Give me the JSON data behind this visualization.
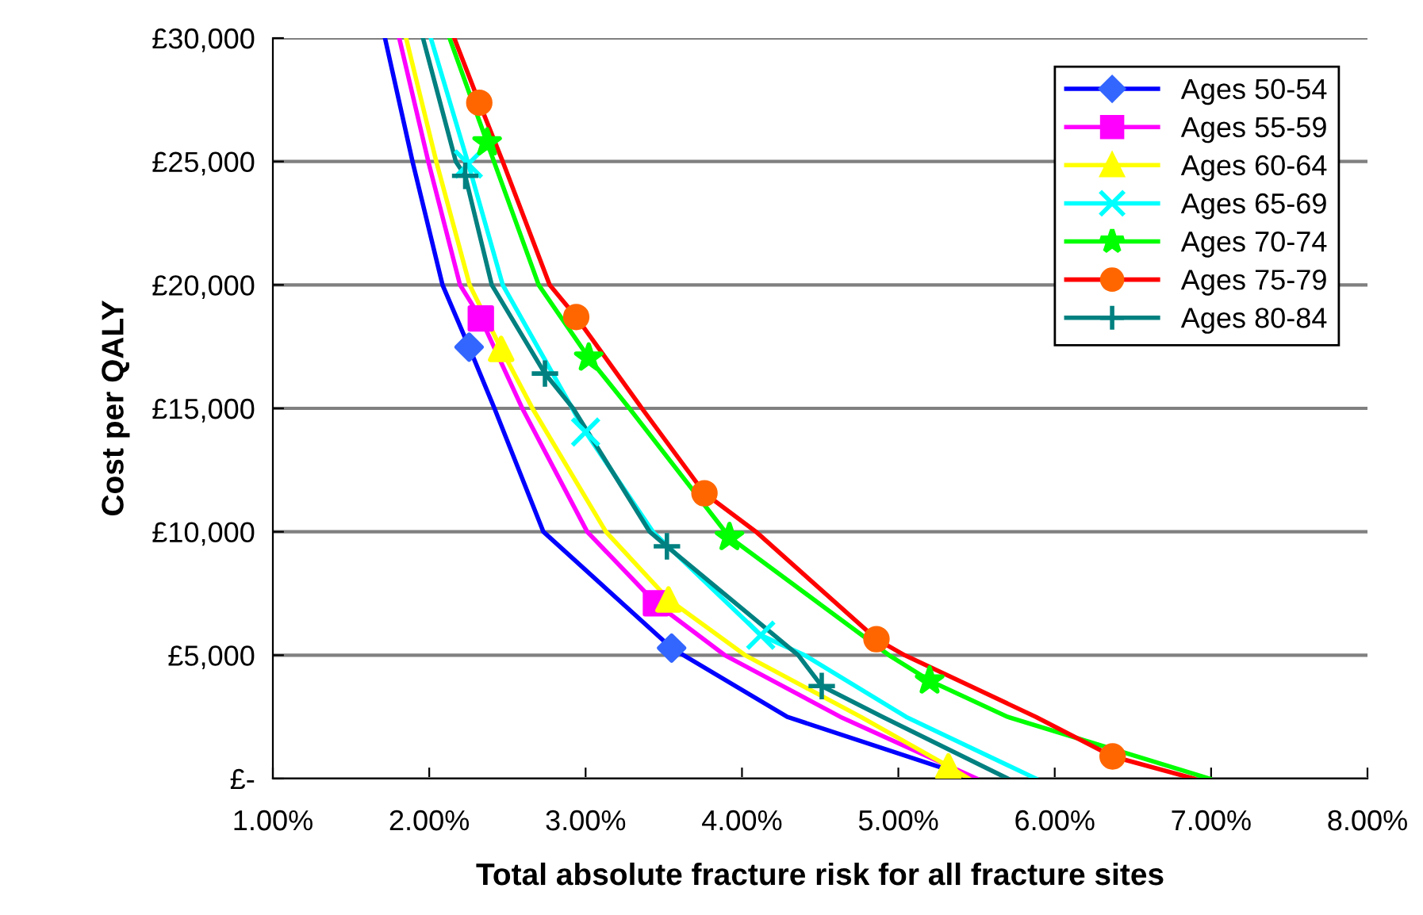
{
  "chart_data": {
    "type": "line",
    "xlabel": "Total absolute fracture risk for all fracture sites",
    "ylabel": "Cost per QALY",
    "xlim": [
      1,
      8
    ],
    "xticks": [
      {
        "value": 1,
        "label": "1.00%"
      },
      {
        "value": 2,
        "label": "2.00%"
      },
      {
        "value": 3,
        "label": "3.00%"
      },
      {
        "value": 4,
        "label": "4.00%"
      },
      {
        "value": 5,
        "label": "5.00%"
      },
      {
        "value": 6,
        "label": "6.00%"
      },
      {
        "value": 7,
        "label": "7.00%"
      },
      {
        "value": 8,
        "label": "8.00%"
      }
    ],
    "ylim": [
      0,
      30000
    ],
    "yticks": [
      {
        "value": 0,
        "label": "£-"
      },
      {
        "value": 5000,
        "label": "£5,000"
      },
      {
        "value": 10000,
        "label": "£10,000"
      },
      {
        "value": 15000,
        "label": "£15,000"
      },
      {
        "value": 20000,
        "label": "£20,000"
      },
      {
        "value": 25000,
        "label": "£25,000"
      },
      {
        "value": 30000,
        "label": "£30,000"
      }
    ],
    "grid": "y",
    "legend": "top right",
    "series": [
      {
        "marker": "none",
        "color": "#0000ff",
        "x": [
          1.717,
          1.893,
          2.085,
          2.255,
          2.417,
          2.73,
          3.55,
          4.29,
          5.49
        ],
        "values": [
          30000,
          25000,
          20000,
          17480,
          15000,
          10000,
          5290,
          2500,
          0
        ]
      },
      {
        "type": "scatter",
        "name": "Ages 50-54",
        "marker": "diamond",
        "color": "#3366ff",
        "x": [
          2.255,
          3.55
        ],
        "values": [
          17480,
          5290
        ]
      },
      {
        "marker": "none",
        "color": "#ff00ff",
        "x": [
          1.808,
          1.994,
          2.197,
          2.33,
          2.595,
          3.01,
          3.45,
          3.89,
          4.63,
          5.5
        ],
        "values": [
          30000,
          25000,
          20000,
          18640,
          15000,
          10000,
          7100,
          5000,
          2500,
          0
        ]
      },
      {
        "type": "scatter",
        "name": "Ages 55-59",
        "marker": "square",
        "color": "#ff00ff",
        "x": [
          2.33,
          3.45
        ],
        "values": [
          18640,
          7100
        ]
      },
      {
        "marker": "none",
        "color": "#ffff00",
        "x": [
          1.852,
          2.045,
          2.258,
          2.46,
          2.66,
          3.13,
          3.53,
          4.02,
          4.76,
          5.32,
          5.45
        ],
        "values": [
          30000,
          25000,
          20000,
          17410,
          15000,
          10000,
          7260,
          5000,
          2500,
          500,
          0
        ]
      },
      {
        "type": "scatter",
        "name": "Ages 60-64",
        "marker": "triangle",
        "color": "#ffff00",
        "x": [
          2.46,
          3.53,
          5.32
        ],
        "values": [
          17410,
          7260,
          500
        ]
      },
      {
        "marker": "none",
        "color": "#00ffff",
        "x": [
          2.01,
          2.25,
          2.47,
          3.0,
          3.43,
          4.12,
          4.4,
          5.05,
          5.88
        ],
        "values": [
          30000,
          24900,
          20000,
          14040,
          10000,
          5810,
          5000,
          2500,
          0
        ]
      },
      {
        "type": "scatter",
        "name": "Ages 65-69",
        "marker": "cross",
        "color": "#00ffff",
        "x": [
          2.25,
          3.0,
          4.12
        ],
        "values": [
          24900,
          14040,
          5810
        ]
      },
      {
        "marker": "none",
        "color": "#00ff00",
        "x": [
          2.13,
          2.37,
          2.7,
          3.02,
          3.28,
          3.92,
          4.94,
          5.2,
          5.7,
          6.99
        ],
        "values": [
          30000,
          25770,
          20000,
          17050,
          15000,
          9780,
          5000,
          3970,
          2500,
          0
        ]
      },
      {
        "type": "scatter",
        "name": "Ages 70-74",
        "marker": "star",
        "color": "#00ff00",
        "x": [
          2.37,
          3.02,
          3.92,
          5.2
        ],
        "values": [
          25770,
          17050,
          9780,
          3970
        ]
      },
      {
        "marker": "none",
        "color": "#ff0000",
        "x": [
          2.16,
          2.32,
          2.47,
          2.77,
          2.94,
          3.36,
          3.76,
          4.09,
          4.86,
          5.04,
          5.88,
          6.37,
          6.89
        ],
        "values": [
          30000,
          27380,
          25000,
          20000,
          18700,
          15000,
          11560,
          10000,
          5650,
          5000,
          2500,
          900,
          0
        ]
      },
      {
        "type": "scatter",
        "name": "Ages 75-79",
        "marker": "circle",
        "color": "#ff6600",
        "x": [
          2.32,
          2.94,
          3.76,
          4.86,
          6.37
        ],
        "values": [
          27380,
          18700,
          11560,
          5650,
          900
        ]
      },
      {
        "marker": "none",
        "color": "#008080",
        "x": [
          1.96,
          2.17,
          2.23,
          2.4,
          2.74,
          2.92,
          3.41,
          3.52,
          4.36,
          4.51,
          4.9,
          5.7
        ],
        "values": [
          30000,
          25000,
          24420,
          20000,
          16410,
          15000,
          10000,
          9410,
          5000,
          3750,
          2500,
          0
        ]
      },
      {
        "type": "scatter",
        "name": "Ages 80-84",
        "marker": "plus",
        "color": "#008080",
        "x": [
          2.23,
          2.74,
          3.52,
          4.51
        ],
        "values": [
          24420,
          16410,
          9410,
          3750
        ]
      }
    ]
  }
}
